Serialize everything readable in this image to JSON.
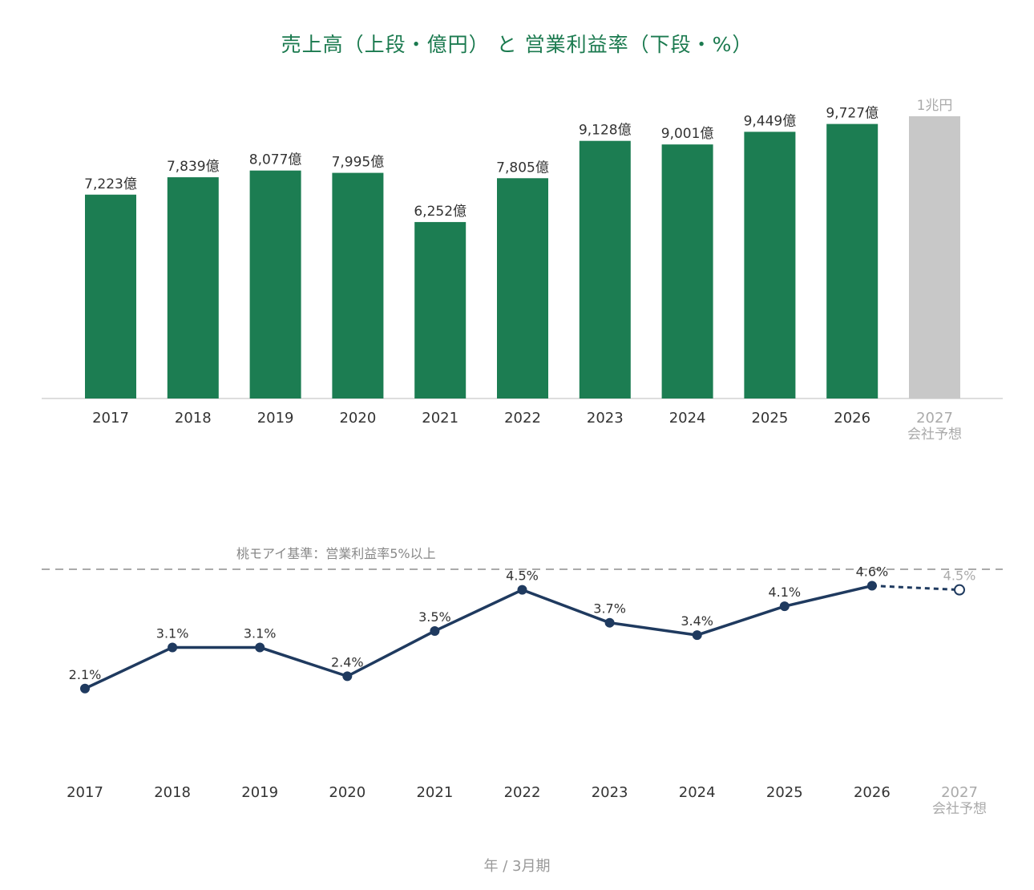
{
  "title": "売上高（上段・億円） と 営業利益率（下段・%）",
  "x_axis_title": "年 / 3月期",
  "colors": {
    "bar": "#1c7d52",
    "forecast_bar": "#c8c8c8",
    "line": "#1f3a5f",
    "title": "#1b7a4f",
    "forecast_text": "#aaaaaa",
    "label_text": "#333333",
    "reference_line": "#aaaaaa"
  },
  "chart_data": [
    {
      "type": "bar",
      "title": "売上高",
      "unit": "億円",
      "categories": [
        "2017",
        "2018",
        "2019",
        "2020",
        "2021",
        "2022",
        "2023",
        "2024",
        "2025",
        "2026",
        "2027"
      ],
      "forecast_sublabel": "会社予想",
      "values": [
        7223,
        7839,
        8077,
        7995,
        6252,
        7805,
        9128,
        9001,
        9449,
        9727,
        10000
      ],
      "value_labels": [
        "7,223億",
        "7,839億",
        "8,077億",
        "7,995億",
        "6,252億",
        "7,805億",
        "9,128億",
        "9,001億",
        "9,449億",
        "9,727億",
        "1兆円"
      ],
      "forecast": [
        false,
        false,
        false,
        false,
        false,
        false,
        false,
        false,
        false,
        false,
        true
      ],
      "ylim": [
        0,
        10000
      ],
      "grid": false
    },
    {
      "type": "line",
      "title": "営業利益率",
      "unit": "%",
      "categories": [
        "2017",
        "2018",
        "2019",
        "2020",
        "2021",
        "2022",
        "2023",
        "2024",
        "2025",
        "2026",
        "2027"
      ],
      "forecast_sublabel": "会社予想",
      "values": [
        2.1,
        3.1,
        3.1,
        2.4,
        3.5,
        4.5,
        3.7,
        3.4,
        4.1,
        4.6,
        4.5
      ],
      "value_labels": [
        "2.1%",
        "3.1%",
        "3.1%",
        "2.4%",
        "3.5%",
        "4.5%",
        "3.7%",
        "3.4%",
        "4.1%",
        "4.6%",
        "4.5%"
      ],
      "forecast": [
        false,
        false,
        false,
        false,
        false,
        false,
        false,
        false,
        false,
        false,
        true
      ],
      "reference_line": {
        "value": 5,
        "label": "桃モアイ基準：営業利益率5%以上"
      },
      "grid": false
    }
  ]
}
